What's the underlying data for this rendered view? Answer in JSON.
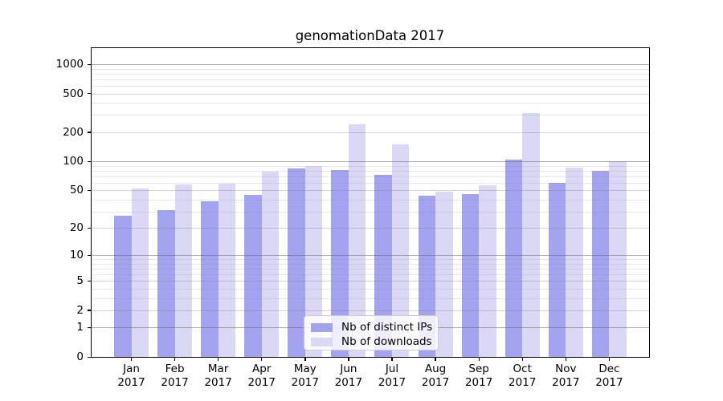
{
  "chart_data": {
    "type": "bar",
    "title": "genomationData 2017",
    "categories": [
      "Jan",
      "Feb",
      "Mar",
      "Apr",
      "May",
      "Jun",
      "Jul",
      "Aug",
      "Sep",
      "Oct",
      "Nov",
      "Dec"
    ],
    "x_year_label": "2017",
    "series": [
      {
        "name": "Nb of distinct IPs",
        "slug": "distinct-ips",
        "color": "#a3a3f0",
        "values": [
          27,
          31,
          38,
          45,
          84,
          81,
          72,
          44,
          46,
          105,
          60,
          80
        ]
      },
      {
        "name": "Nb of downloads",
        "slug": "downloads",
        "color": "#d9d9f6",
        "values": [
          52,
          57,
          59,
          78,
          90,
          242,
          149,
          48,
          56,
          314,
          86,
          100
        ]
      }
    ],
    "y_scale": "log1p",
    "y_ticks": [
      0,
      1,
      2,
      5,
      10,
      20,
      50,
      100,
      200,
      500,
      1000
    ],
    "y_decade_gridlines": [
      1,
      10,
      100,
      1000
    ],
    "y_minor_gridlines": [
      3,
      4,
      6,
      7,
      8,
      9,
      30,
      40,
      60,
      70,
      80,
      90,
      300,
      400,
      600,
      700,
      800,
      900
    ],
    "ylim": [
      0,
      1500
    ],
    "grid": true,
    "legend_position": "lower-center",
    "colors": {
      "axis": "#000000",
      "decade_gridline": "#b0b0b0",
      "labeled_gridline": "#d7d7d7",
      "minor_gridline": "#e9e9e9",
      "background": "#ffffff"
    }
  }
}
